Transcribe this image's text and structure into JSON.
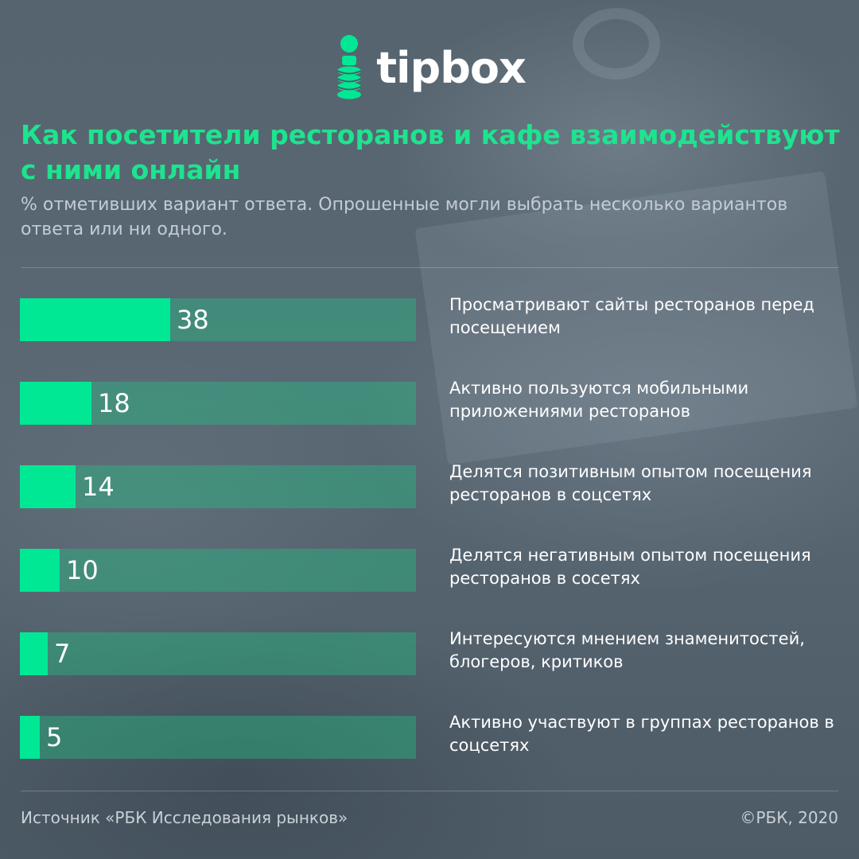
{
  "brand": {
    "name": "tipbox",
    "accent_color": "#00e893",
    "logo_icon": "coin-stack-icon"
  },
  "header": {
    "title": "Как посетители ресторанов и кафе взаимодействуют с ними онлайн",
    "subtitle": "% отметивших вариант ответа. Опрошенные могли выбрать несколько вариантов ответа или ни одного."
  },
  "chart_data": {
    "type": "bar",
    "orientation": "horizontal",
    "categories": [
      "Просматривают сайты ресторанов перед посещением",
      "Активно пользуются мобильными приложениями ресторанов",
      "Делятся позитивным опытом посещения ресторанов в соцсетях",
      "Делятся негативным опытом посещения ресторанов в сосетях",
      "Интересуются мнением знаменитостей, блогеров, критиков",
      "Активно участвуют в группах ресторанов в соцсетях"
    ],
    "values": [
      38,
      18,
      14,
      10,
      7,
      5
    ],
    "xlim": [
      0,
      100
    ],
    "title": "Как посетители ресторанов и кафе взаимодействуют с ними онлайн",
    "grid": false,
    "bar_color": "#00e893",
    "track_color": "#1ec887"
  },
  "footer": {
    "source": "Источник «РБК Исследования рынков»",
    "copyright": "©РБК, 2020"
  }
}
